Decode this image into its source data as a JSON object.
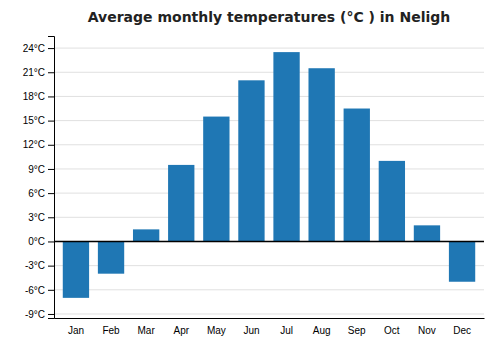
{
  "chart_data": {
    "type": "bar",
    "title": "Average monthly temperatures (°C ) in Neligh",
    "categories": [
      "Jan",
      "Feb",
      "Mar",
      "Apr",
      "May",
      "Jun",
      "Jul",
      "Aug",
      "Sep",
      "Oct",
      "Nov",
      "Dec"
    ],
    "values": [
      -7.0,
      -4.0,
      1.5,
      9.5,
      15.5,
      20.0,
      23.5,
      21.5,
      16.5,
      10.0,
      2.0,
      -5.0
    ],
    "ylim": [
      -9.5,
      25.5
    ],
    "yticks": [
      {
        "value": -9,
        "label": "-9°C"
      },
      {
        "value": -6,
        "label": "-6°C"
      },
      {
        "value": -3,
        "label": "-3°C"
      },
      {
        "value": 0,
        "label": "0°C"
      },
      {
        "value": 3,
        "label": "3°C"
      },
      {
        "value": 6,
        "label": "6°C"
      },
      {
        "value": 9,
        "label": "9°C"
      },
      {
        "value": 12,
        "label": "12°C"
      },
      {
        "value": 15,
        "label": "15°C"
      },
      {
        "value": 18,
        "label": "18°C"
      },
      {
        "value": 21,
        "label": "21°C"
      },
      {
        "value": 24,
        "label": "24°C"
      }
    ],
    "grid": true
  }
}
